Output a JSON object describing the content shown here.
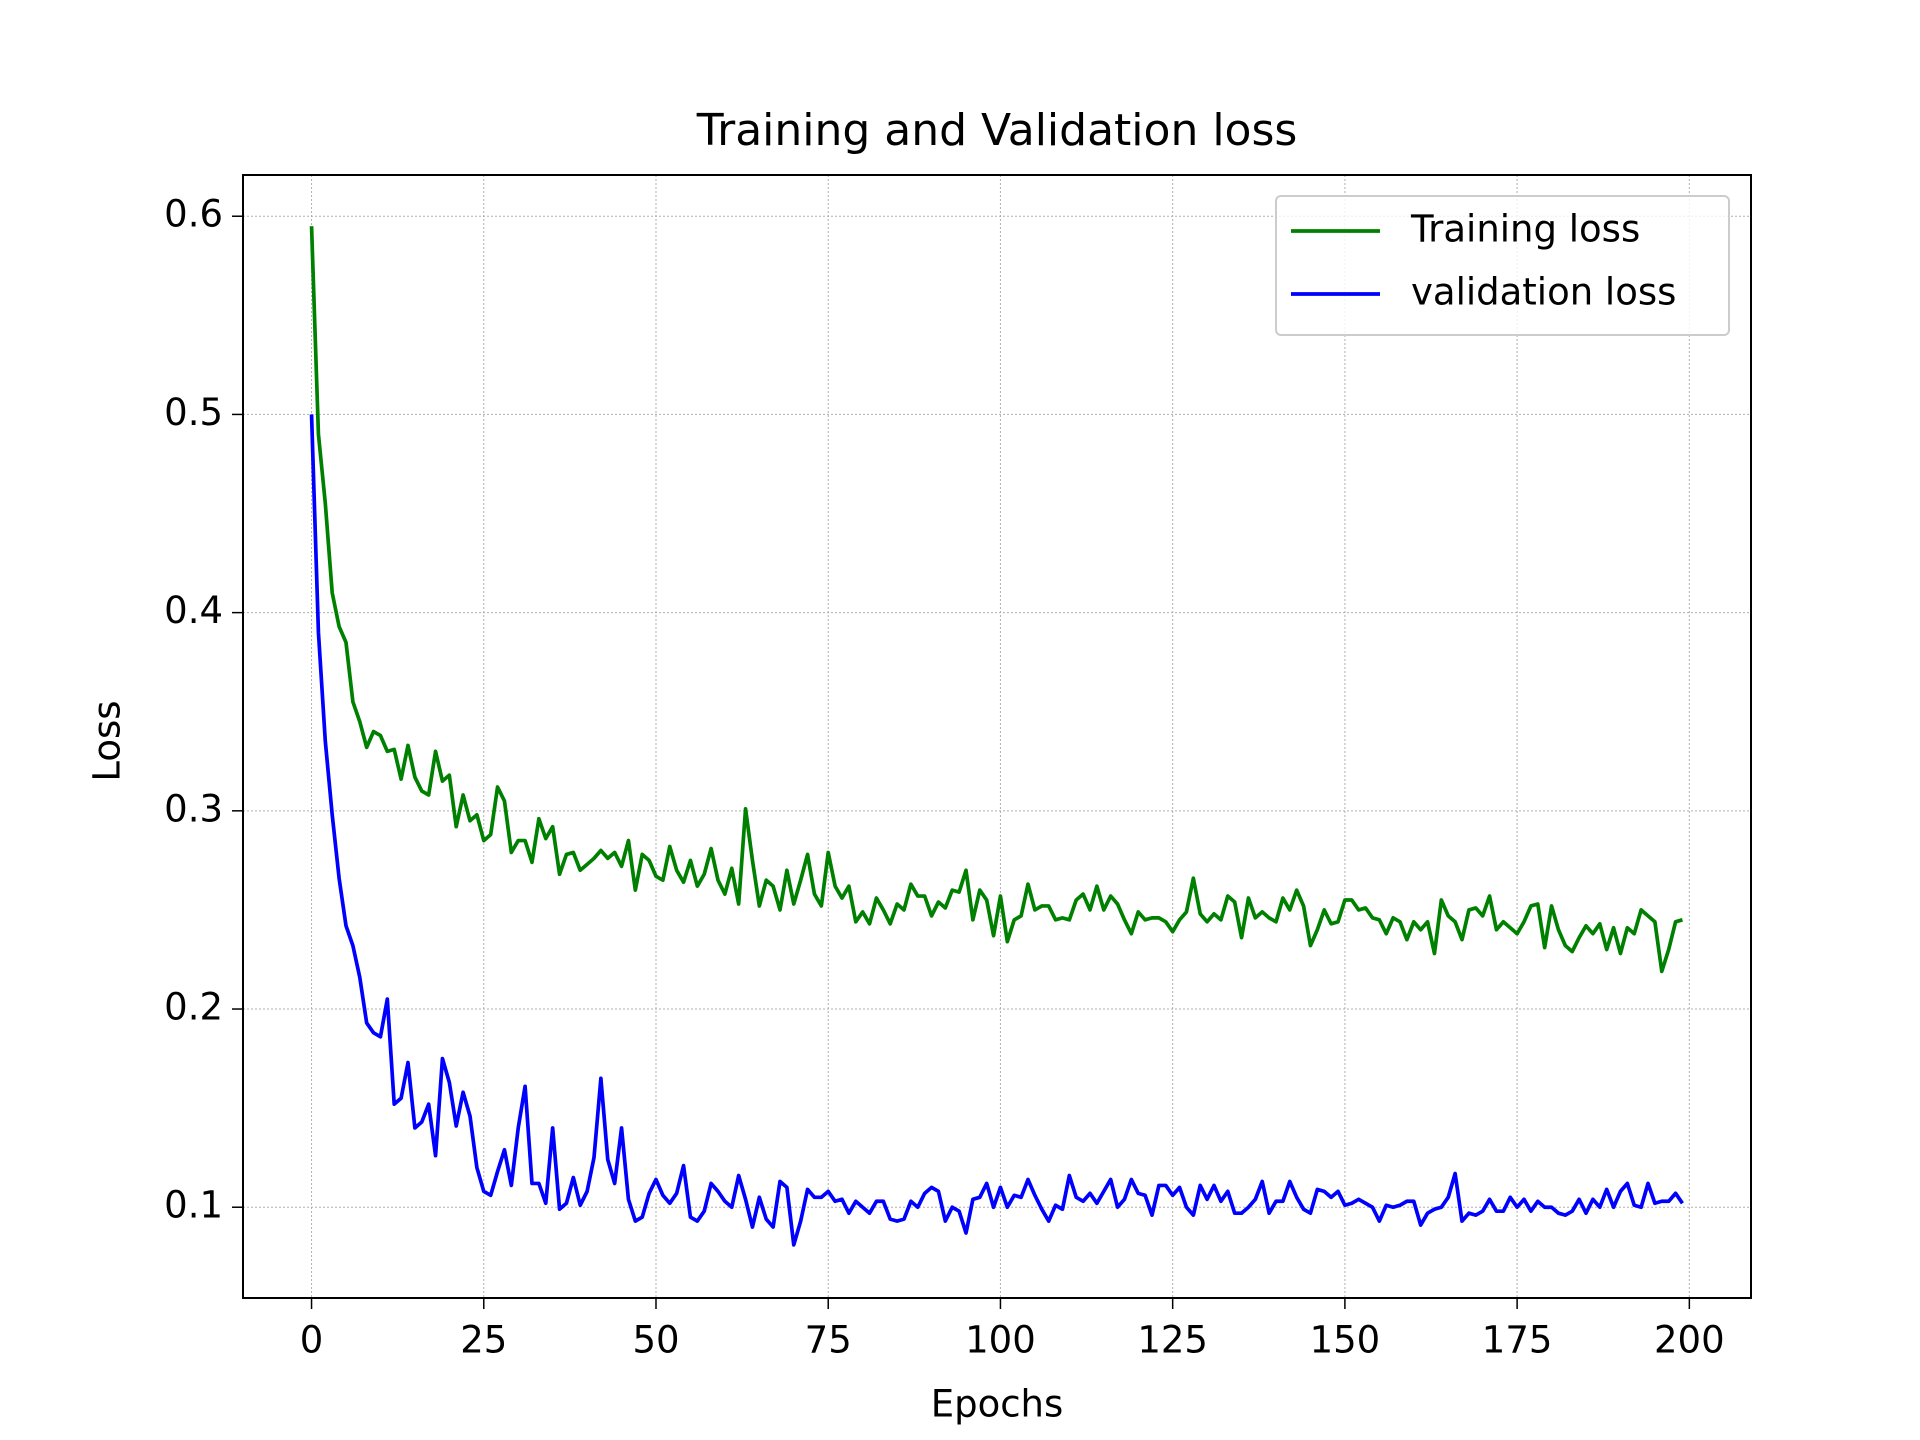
{
  "chart_data": {
    "type": "line",
    "title": "Training and Validation loss",
    "xlabel": "Epochs",
    "ylabel": "Loss",
    "x": [
      0,
      1,
      2,
      3,
      4,
      5,
      6,
      7,
      8,
      9,
      10,
      11,
      12,
      13,
      14,
      15,
      16,
      17,
      18,
      19,
      20,
      21,
      22,
      23,
      24,
      25,
      26,
      27,
      28,
      29,
      30,
      31,
      32,
      33,
      34,
      35,
      36,
      37,
      38,
      39,
      40,
      41,
      42,
      43,
      44,
      45,
      46,
      47,
      48,
      49,
      50,
      51,
      52,
      53,
      54,
      55,
      56,
      57,
      58,
      59,
      60,
      61,
      62,
      63,
      64,
      65,
      66,
      67,
      68,
      69,
      70,
      71,
      72,
      73,
      74,
      75,
      76,
      77,
      78,
      79,
      80,
      81,
      82,
      83,
      84,
      85,
      86,
      87,
      88,
      89,
      90,
      91,
      92,
      93,
      94,
      95,
      96,
      97,
      98,
      99,
      100,
      101,
      102,
      103,
      104,
      105,
      106,
      107,
      108,
      109,
      110,
      111,
      112,
      113,
      114,
      115,
      116,
      117,
      118,
      119,
      120,
      121,
      122,
      123,
      124,
      125,
      126,
      127,
      128,
      129,
      130,
      131,
      132,
      133,
      134,
      135,
      136,
      137,
      138,
      139,
      140,
      141,
      142,
      143,
      144,
      145,
      146,
      147,
      148,
      149,
      150,
      151,
      152,
      153,
      154,
      155,
      156,
      157,
      158,
      159,
      160,
      161,
      162,
      163,
      164,
      165,
      166,
      167,
      168,
      169,
      170,
      171,
      172,
      173,
      174,
      175,
      176,
      177,
      178,
      179,
      180,
      181,
      182,
      183,
      184,
      185,
      186,
      187,
      188,
      189,
      190,
      191,
      192,
      193,
      194,
      195,
      196,
      197,
      198,
      199
    ],
    "series": [
      {
        "name": "Training loss",
        "color": "#008000",
        "values": [
          0.595,
          0.49,
          0.455,
          0.41,
          0.393,
          0.385,
          0.355,
          0.345,
          0.332,
          0.34,
          0.338,
          0.33,
          0.331,
          0.316,
          0.333,
          0.317,
          0.31,
          0.308,
          0.33,
          0.315,
          0.318,
          0.292,
          0.308,
          0.295,
          0.298,
          0.285,
          0.288,
          0.312,
          0.305,
          0.279,
          0.285,
          0.285,
          0.274,
          0.296,
          0.286,
          0.292,
          0.268,
          0.278,
          0.279,
          0.27,
          0.273,
          0.276,
          0.28,
          0.276,
          0.279,
          0.272,
          0.285,
          0.26,
          0.278,
          0.275,
          0.267,
          0.265,
          0.282,
          0.27,
          0.264,
          0.275,
          0.262,
          0.268,
          0.281,
          0.265,
          0.258,
          0.271,
          0.253,
          0.301,
          0.275,
          0.252,
          0.265,
          0.262,
          0.25,
          0.27,
          0.253,
          0.265,
          0.278,
          0.258,
          0.252,
          0.279,
          0.262,
          0.256,
          0.262,
          0.244,
          0.249,
          0.243,
          0.256,
          0.25,
          0.243,
          0.253,
          0.25,
          0.263,
          0.257,
          0.257,
          0.247,
          0.254,
          0.251,
          0.26,
          0.259,
          0.27,
          0.245,
          0.26,
          0.255,
          0.237,
          0.257,
          0.234,
          0.245,
          0.247,
          0.263,
          0.25,
          0.252,
          0.252,
          0.245,
          0.246,
          0.245,
          0.255,
          0.258,
          0.25,
          0.262,
          0.25,
          0.257,
          0.253,
          0.245,
          0.238,
          0.249,
          0.245,
          0.246,
          0.246,
          0.244,
          0.239,
          0.245,
          0.249,
          0.266,
          0.248,
          0.244,
          0.248,
          0.245,
          0.257,
          0.254,
          0.236,
          0.256,
          0.246,
          0.249,
          0.246,
          0.244,
          0.256,
          0.25,
          0.26,
          0.252,
          0.232,
          0.24,
          0.25,
          0.243,
          0.244,
          0.255,
          0.255,
          0.25,
          0.251,
          0.246,
          0.245,
          0.238,
          0.246,
          0.244,
          0.235,
          0.244,
          0.24,
          0.244,
          0.228,
          0.255,
          0.247,
          0.244,
          0.235,
          0.25,
          0.251,
          0.247,
          0.257,
          0.24,
          0.244,
          0.241,
          0.238,
          0.244,
          0.252,
          0.253,
          0.231,
          0.252,
          0.24,
          0.232,
          0.229,
          0.236,
          0.242,
          0.238,
          0.243,
          0.23,
          0.241,
          0.228,
          0.241,
          0.238,
          0.25,
          0.247,
          0.244,
          0.219,
          0.23,
          0.244,
          0.245
        ]
      },
      {
        "name": "validation loss",
        "color": "#0000ff",
        "values": [
          0.5,
          0.39,
          0.335,
          0.298,
          0.266,
          0.242,
          0.232,
          0.216,
          0.193,
          0.188,
          0.186,
          0.205,
          0.152,
          0.155,
          0.173,
          0.14,
          0.143,
          0.152,
          0.126,
          0.175,
          0.163,
          0.141,
          0.158,
          0.146,
          0.12,
          0.108,
          0.106,
          0.118,
          0.129,
          0.111,
          0.14,
          0.161,
          0.112,
          0.112,
          0.102,
          0.14,
          0.099,
          0.102,
          0.115,
          0.101,
          0.108,
          0.125,
          0.165,
          0.124,
          0.112,
          0.14,
          0.104,
          0.093,
          0.095,
          0.107,
          0.114,
          0.106,
          0.102,
          0.107,
          0.121,
          0.095,
          0.093,
          0.098,
          0.112,
          0.108,
          0.103,
          0.1,
          0.116,
          0.104,
          0.09,
          0.105,
          0.094,
          0.09,
          0.113,
          0.11,
          0.081,
          0.093,
          0.109,
          0.105,
          0.105,
          0.108,
          0.103,
          0.104,
          0.097,
          0.103,
          0.1,
          0.097,
          0.103,
          0.103,
          0.094,
          0.093,
          0.094,
          0.103,
          0.1,
          0.107,
          0.11,
          0.108,
          0.093,
          0.1,
          0.098,
          0.087,
          0.104,
          0.105,
          0.112,
          0.1,
          0.11,
          0.1,
          0.106,
          0.105,
          0.114,
          0.106,
          0.099,
          0.093,
          0.101,
          0.099,
          0.116,
          0.105,
          0.103,
          0.107,
          0.102,
          0.108,
          0.114,
          0.1,
          0.104,
          0.114,
          0.107,
          0.106,
          0.096,
          0.111,
          0.111,
          0.106,
          0.11,
          0.1,
          0.096,
          0.111,
          0.104,
          0.111,
          0.103,
          0.108,
          0.097,
          0.097,
          0.1,
          0.104,
          0.113,
          0.097,
          0.103,
          0.103,
          0.113,
          0.105,
          0.099,
          0.097,
          0.109,
          0.108,
          0.105,
          0.108,
          0.101,
          0.102,
          0.104,
          0.102,
          0.1,
          0.093,
          0.101,
          0.1,
          0.101,
          0.103,
          0.103,
          0.091,
          0.097,
          0.099,
          0.1,
          0.105,
          0.117,
          0.093,
          0.097,
          0.096,
          0.098,
          0.104,
          0.098,
          0.098,
          0.105,
          0.1,
          0.104,
          0.098,
          0.103,
          0.1,
          0.1,
          0.097,
          0.096,
          0.098,
          0.104,
          0.097,
          0.104,
          0.1,
          0.109,
          0.1,
          0.108,
          0.112,
          0.101,
          0.1,
          0.112,
          0.102,
          0.103,
          0.103,
          0.107,
          0.102
        ]
      }
    ],
    "xlim": [
      -9.95,
      208.95
    ],
    "ylim": [
      0.0542,
      0.6208
    ],
    "xticks": [
      0,
      25,
      50,
      75,
      100,
      125,
      150,
      175,
      200
    ],
    "yticks": [
      0.1,
      0.2,
      0.3,
      0.4,
      0.5,
      0.6
    ],
    "grid": true,
    "legend": "upper right"
  }
}
